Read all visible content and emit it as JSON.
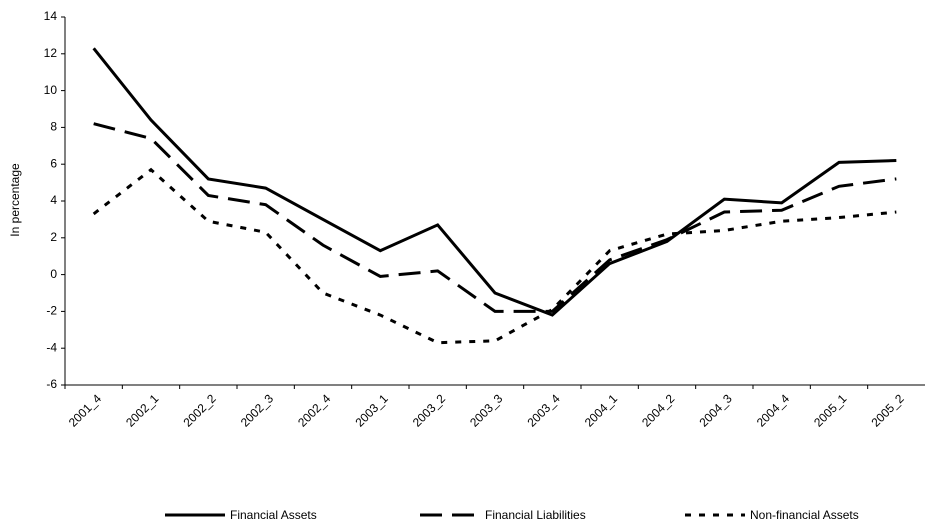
{
  "chart_data": {
    "type": "line",
    "y_label": "In percentage",
    "categories": [
      "2001_4",
      "2002_1",
      "2002_2",
      "2002_3",
      "2002_4",
      "2003_1",
      "2003_2",
      "2003_3",
      "2003_4",
      "2004_1",
      "2004_2",
      "2004_3",
      "2004_4",
      "2005_1",
      "2005_2"
    ],
    "series": [
      {
        "name": "Financial Assets",
        "color": "#000000",
        "dash": "solid",
        "values": [
          12.3,
          8.4,
          5.2,
          4.7,
          3.0,
          1.3,
          2.7,
          -1.0,
          -2.2,
          0.6,
          1.8,
          4.1,
          3.9,
          6.1,
          6.2
        ]
      },
      {
        "name": "Financial Liabilities",
        "color": "#000000",
        "dash": "long",
        "values": [
          8.2,
          7.4,
          4.3,
          3.8,
          1.6,
          -0.1,
          0.2,
          -2.0,
          -2.0,
          0.8,
          1.9,
          3.4,
          3.5,
          4.8,
          5.2
        ]
      },
      {
        "name": "Non-financial Assets",
        "color": "#000000",
        "dash": "short",
        "values": [
          3.3,
          5.7,
          2.9,
          2.3,
          -1.0,
          -2.2,
          -3.7,
          -3.6,
          -1.9,
          1.3,
          2.2,
          2.4,
          2.9,
          3.1,
          3.4
        ]
      }
    ],
    "ylim": [
      -6,
      14
    ],
    "yticks": [
      -6,
      -4,
      -2,
      0,
      2,
      4,
      6,
      8,
      10,
      12,
      14
    ],
    "grid": false,
    "legend": "bottom"
  }
}
